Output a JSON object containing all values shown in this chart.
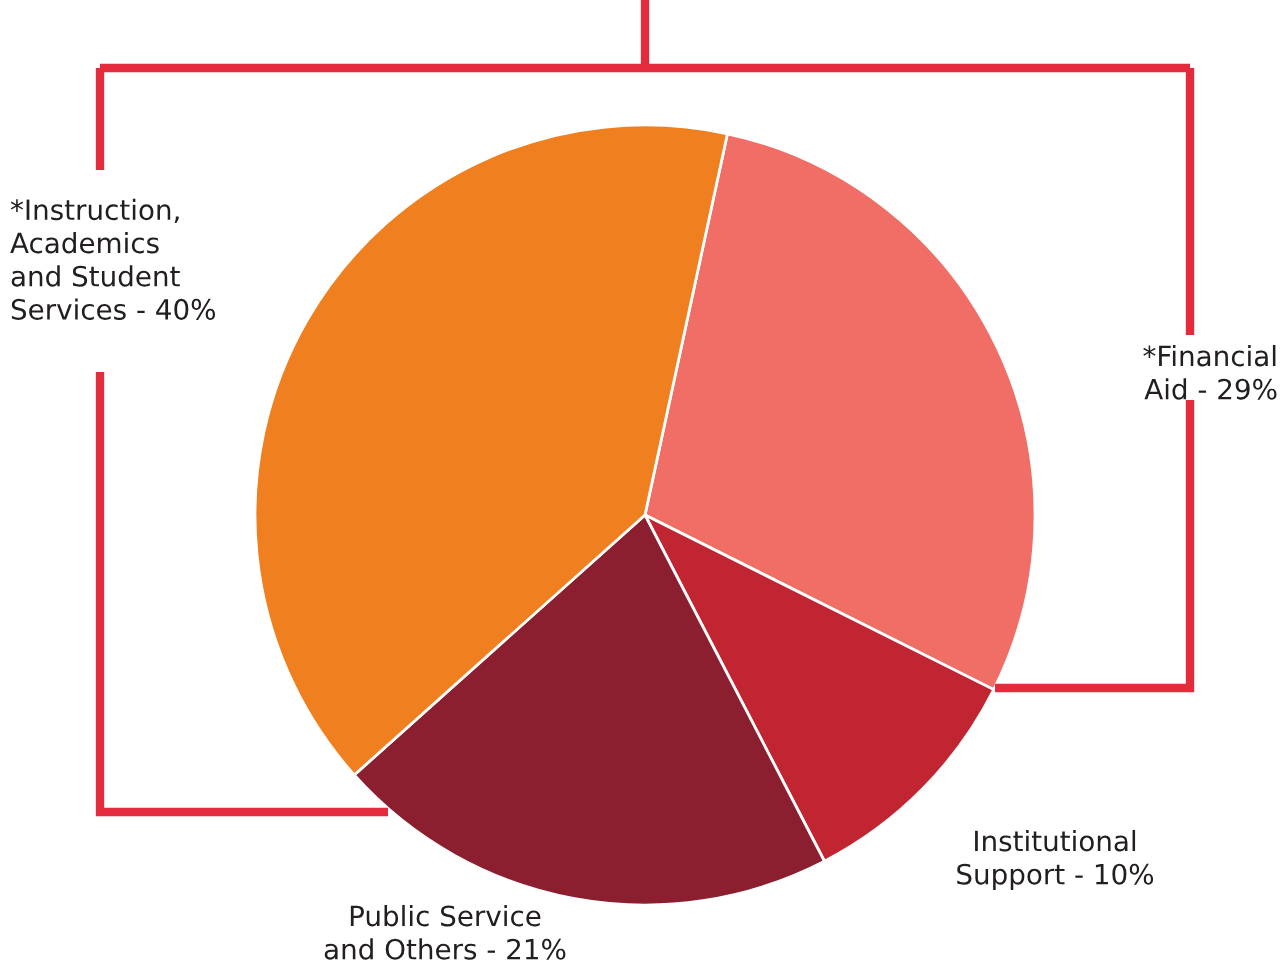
{
  "chart_data": {
    "type": "pie",
    "categories": [
      "*Financial\nAid - 29%",
      "Institutional\nSupport - 10%",
      "Public Service\nand Others - 21%",
      "*Instruction,\nAcademics\nand Student\nServices - 40%"
    ],
    "values": [
      29,
      10,
      21,
      40
    ],
    "colors": [
      "#f06e66",
      "#c12532",
      "#8c1f2f",
      "#f07f1f"
    ]
  }
}
